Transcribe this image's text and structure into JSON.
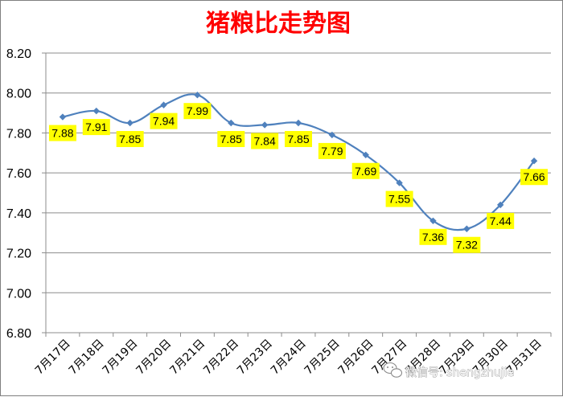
{
  "chart_data": {
    "type": "line",
    "title": "猪粮比走势图",
    "categories": [
      "7月17日",
      "7月18日",
      "7月19日",
      "7月20日",
      "7月21日",
      "7月22日",
      "7月23日",
      "7月24日",
      "7月25日",
      "7月26日",
      "7月27日",
      "7月28日",
      "7月29日",
      "7月30日",
      "7月31日"
    ],
    "series": [
      {
        "values": [
          7.88,
          7.91,
          7.85,
          7.94,
          7.99,
          7.85,
          7.84,
          7.85,
          7.79,
          7.69,
          7.55,
          7.36,
          7.32,
          7.44,
          7.66
        ],
        "color": "#4f81bd",
        "data_labels": [
          "7.88",
          "7.91",
          "7.85",
          "7.94",
          "7.99",
          "7.85",
          "7.84",
          "7.85",
          "7.79",
          "7.69",
          "7.55",
          "7.36",
          "7.32",
          "7.44",
          "7.66"
        ]
      }
    ],
    "ylim": [
      6.8,
      8.2
    ],
    "y_ticks": [
      "6.80",
      "7.00",
      "7.20",
      "7.40",
      "7.60",
      "7.80",
      "8.00",
      "8.20"
    ],
    "xlabel": "",
    "ylabel": "",
    "grid": true,
    "data_label_background": "#ffff00",
    "title_color": "#ff0000",
    "marker": "diamond"
  },
  "watermark": {
    "text": "微信号: shengzhujie"
  }
}
